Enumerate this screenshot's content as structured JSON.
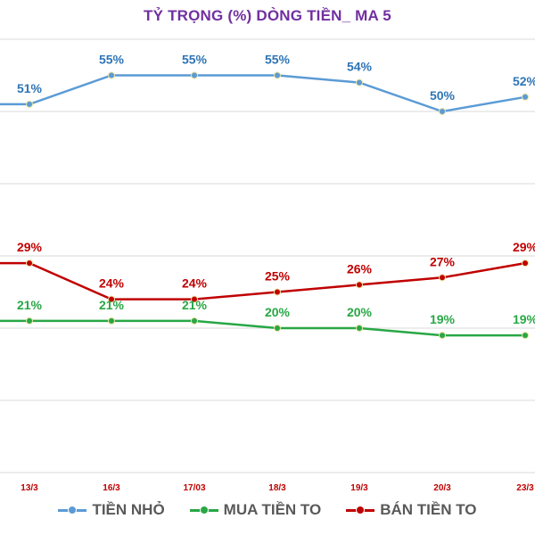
{
  "chart_data": {
    "type": "line",
    "title": "TỶ TRỌNG (%) DÒNG TIỀN_ MA 5",
    "categories": [
      "13/3",
      "16/3",
      "17/03",
      "18/3",
      "19/3",
      "20/3",
      "23/3"
    ],
    "series": [
      {
        "name": "TIỀN NHỎ",
        "color": "#5b9bd5",
        "label_color": "#2e75b6",
        "values": [
          51,
          55,
          55,
          55,
          54,
          50,
          52
        ],
        "labels": [
          "51%",
          "55%",
          "55%",
          "55%",
          "54%",
          "50%",
          "52%"
        ]
      },
      {
        "name": "MUA TIỀN TO",
        "color": "#28a745",
        "label_color": "#28a745",
        "values": [
          21,
          21,
          21,
          20,
          20,
          19,
          19
        ],
        "labels": [
          "21%",
          "21%",
          "21%",
          "20%",
          "20%",
          "19%",
          "19%"
        ]
      },
      {
        "name": "BÁN TIỀN TO",
        "color": "#c00000",
        "label_color": "#c00000",
        "values": [
          29,
          24,
          24,
          25,
          26,
          27,
          29
        ],
        "labels": [
          "29%",
          "24%",
          "24%",
          "25%",
          "26%",
          "27%",
          "29%"
        ]
      }
    ],
    "gridlines": [
      0,
      10,
      20,
      30,
      40,
      50,
      60
    ],
    "grid": true,
    "legend_position": "bottom",
    "category_label_color": "#c00000"
  }
}
